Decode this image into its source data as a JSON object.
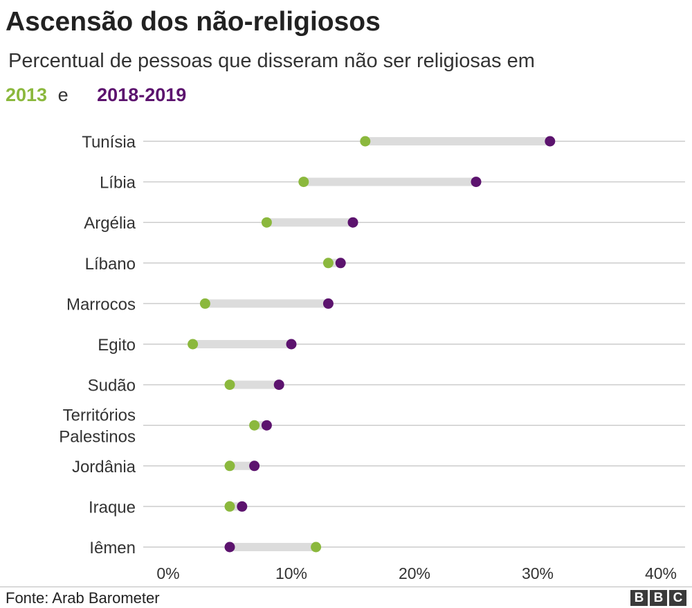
{
  "header": {
    "title": "Ascensão dos não-religiosos",
    "subtitle": "Percentual de pessoas que disseram não ser religiosas em",
    "legend_2013": "2013",
    "legend_connector": "e",
    "legend_2018": "2018-2019"
  },
  "footer": {
    "source": "Fonte: Arab Barometer",
    "logo_letters": [
      "B",
      "B",
      "C"
    ]
  },
  "colors": {
    "series_2013": "#8bb83d",
    "series_2018": "#5c136e",
    "connector_bar": "#dcdcdc",
    "gridline": "#cccccc"
  },
  "chart_data": {
    "type": "dumbbell",
    "title": "Ascensão dos não-religiosos",
    "subtitle": "Percentual de pessoas que disseram não ser religiosas em",
    "xlim": [
      0,
      40
    ],
    "x_ticks": [
      "0%",
      "10%",
      "20%",
      "30%",
      "40%"
    ],
    "x_tick_values": [
      0,
      10,
      20,
      30,
      40
    ],
    "grid": true,
    "series": [
      {
        "name": "2013",
        "color": "#8bb83d"
      },
      {
        "name": "2018-2019",
        "color": "#5c136e"
      }
    ],
    "categories": [
      {
        "label": [
          "Tunísia"
        ],
        "v2013": 16,
        "v2018": 31
      },
      {
        "label": [
          "Líbia"
        ],
        "v2013": 11,
        "v2018": 25
      },
      {
        "label": [
          "Argélia"
        ],
        "v2013": 8,
        "v2018": 15
      },
      {
        "label": [
          "Líbano"
        ],
        "v2013": 13,
        "v2018": 14
      },
      {
        "label": [
          "Marrocos"
        ],
        "v2013": 3,
        "v2018": 13
      },
      {
        "label": [
          "Egito"
        ],
        "v2013": 2,
        "v2018": 10
      },
      {
        "label": [
          "Sudão"
        ],
        "v2013": 5,
        "v2018": 9
      },
      {
        "label": [
          "Territórios",
          "Palestinos"
        ],
        "v2013": 7,
        "v2018": 8
      },
      {
        "label": [
          "Jordânia"
        ],
        "v2013": 5,
        "v2018": 7
      },
      {
        "label": [
          "Iraque"
        ],
        "v2013": 5,
        "v2018": 6
      },
      {
        "label": [
          "Iêmen"
        ],
        "v2013": 12,
        "v2018": 5
      }
    ]
  }
}
